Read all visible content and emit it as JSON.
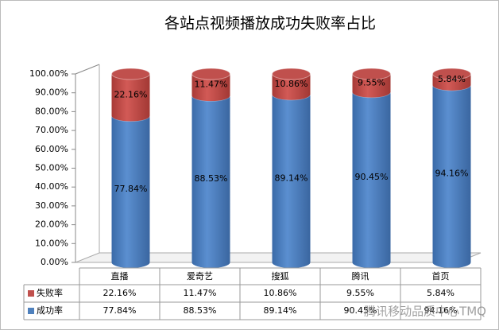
{
  "chart_data": {
    "type": "stacked-cylinder-bar",
    "title": "各站点视频播放成功失败率占比",
    "categories": [
      "直播",
      "爱奇艺",
      "搜狐",
      "腾讯",
      "首页"
    ],
    "series": [
      {
        "name": "成功率",
        "color": "#4f81bd",
        "values": [
          77.84,
          88.53,
          89.14,
          90.45,
          94.16
        ],
        "value_labels": [
          "77.84%",
          "88.53%",
          "89.14%",
          "90.45%",
          "94.16%"
        ]
      },
      {
        "name": "失败率",
        "color": "#c0504d",
        "values": [
          22.16,
          11.47,
          10.86,
          9.55,
          5.84
        ],
        "value_labels": [
          "22.16%",
          "11.47%",
          "10.86%",
          "9.55%",
          "5.84%"
        ]
      }
    ],
    "ylim": [
      0,
      100
    ],
    "yticks": [
      {
        "value": 0,
        "label": "0.00%"
      },
      {
        "value": 10,
        "label": "10.00%"
      },
      {
        "value": 20,
        "label": "20.00%"
      },
      {
        "value": 30,
        "label": "30.00%"
      },
      {
        "value": 40,
        "label": "40.00%"
      },
      {
        "value": 50,
        "label": "50.00%"
      },
      {
        "value": 60,
        "label": "60.00%"
      },
      {
        "value": 70,
        "label": "70.00%"
      },
      {
        "value": 80,
        "label": "80.00%"
      },
      {
        "value": 90,
        "label": "90.00%"
      },
      {
        "value": 100,
        "label": "100.00%"
      }
    ],
    "data_table": true,
    "watermark": "腾讯移动品质中心TMQ"
  }
}
